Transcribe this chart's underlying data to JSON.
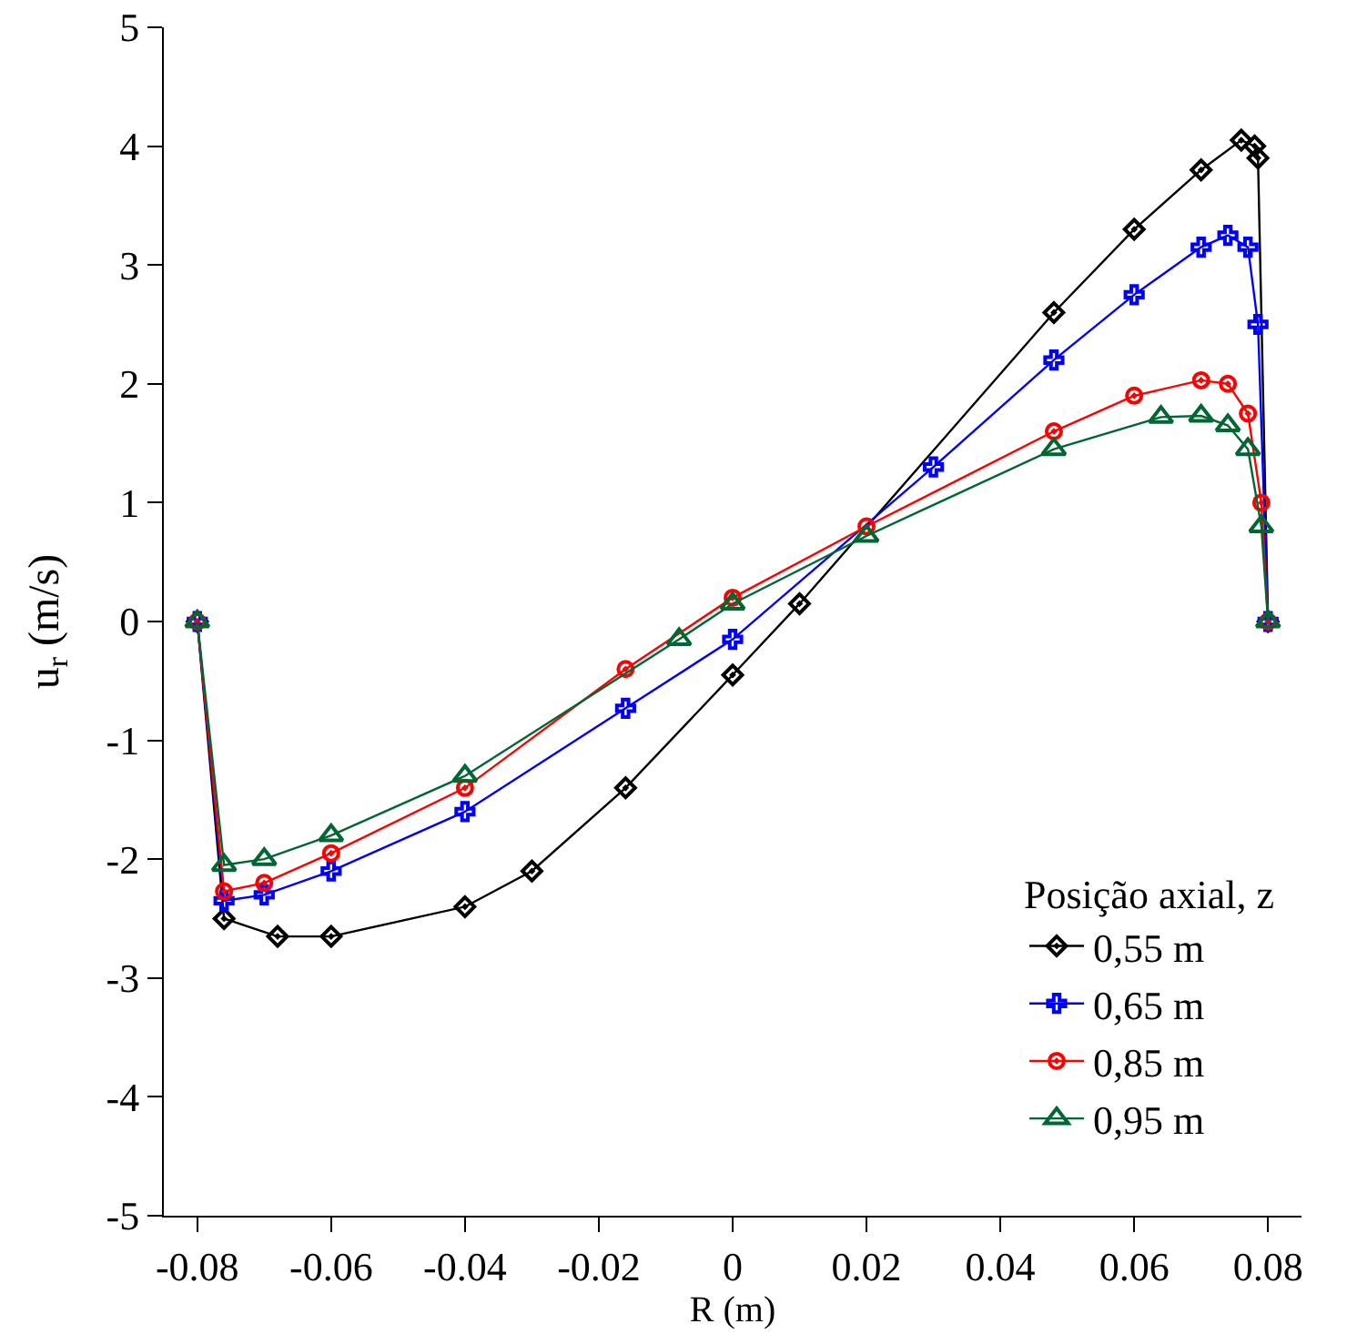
{
  "chart_data": {
    "type": "line",
    "xlabel": "R (m)",
    "ylabel": "u$_{r}$ (m/s)",
    "legend_title": "Posição axial, z",
    "legend": "bottom right",
    "grid": false,
    "xlim": [
      -0.085,
      0.085
    ],
    "xticks": [
      -0.08,
      -0.06,
      -0.04,
      -0.02,
      0,
      0.02,
      0.04,
      0.06,
      0.08
    ],
    "ylim": [
      -5,
      5
    ],
    "yticks": [
      -5,
      -4,
      -3,
      -2,
      -1,
      0,
      1,
      2,
      3,
      4,
      5
    ],
    "series": [
      {
        "name": "0,55 m",
        "color": "#000000",
        "marker": "diamond",
        "x": [
          -0.08,
          -0.076,
          -0.068,
          -0.06,
          -0.04,
          -0.03,
          -0.016,
          0,
          0.01,
          0.048,
          0.06,
          0.07,
          0.076,
          0.078,
          0.0785,
          0.08
        ],
        "values": [
          0,
          -2.5,
          -2.65,
          -2.65,
          -2.4,
          -2.1,
          -1.4,
          -0.45,
          0.15,
          2.6,
          3.3,
          3.8,
          4.05,
          4.0,
          3.9,
          0
        ]
      },
      {
        "name": "0,65 m",
        "color": "#0000ff",
        "marker": "cross",
        "x": [
          -0.08,
          -0.076,
          -0.07,
          -0.06,
          -0.04,
          -0.016,
          0,
          0.03,
          0.048,
          0.06,
          0.07,
          0.074,
          0.077,
          0.0785,
          0.08
        ],
        "values": [
          0,
          -2.35,
          -2.3,
          -2.1,
          -1.6,
          -0.73,
          -0.15,
          1.3,
          2.2,
          2.75,
          3.15,
          3.25,
          3.15,
          2.5,
          0
        ]
      },
      {
        "name": "0,85 m",
        "color": "#ff0000",
        "marker": "circle",
        "x": [
          -0.08,
          -0.076,
          -0.07,
          -0.06,
          -0.04,
          -0.016,
          0,
          0.02,
          0.048,
          0.06,
          0.07,
          0.074,
          0.077,
          0.079,
          0.08
        ],
        "values": [
          0,
          -2.27,
          -2.2,
          -1.95,
          -1.4,
          -0.4,
          0.2,
          0.8,
          1.6,
          1.9,
          2.03,
          2.0,
          1.75,
          1.0,
          0
        ]
      },
      {
        "name": "0,95 m",
        "color": "#006633",
        "marker": "triangle",
        "x": [
          -0.08,
          -0.076,
          -0.07,
          -0.06,
          -0.04,
          -0.008,
          0,
          0.02,
          0.048,
          0.064,
          0.07,
          0.074,
          0.077,
          0.079,
          0.08
        ],
        "values": [
          0,
          -2.05,
          -2.0,
          -1.8,
          -1.3,
          -0.15,
          0.15,
          0.72,
          1.45,
          1.72,
          1.73,
          1.65,
          1.45,
          0.8,
          0
        ]
      }
    ]
  }
}
